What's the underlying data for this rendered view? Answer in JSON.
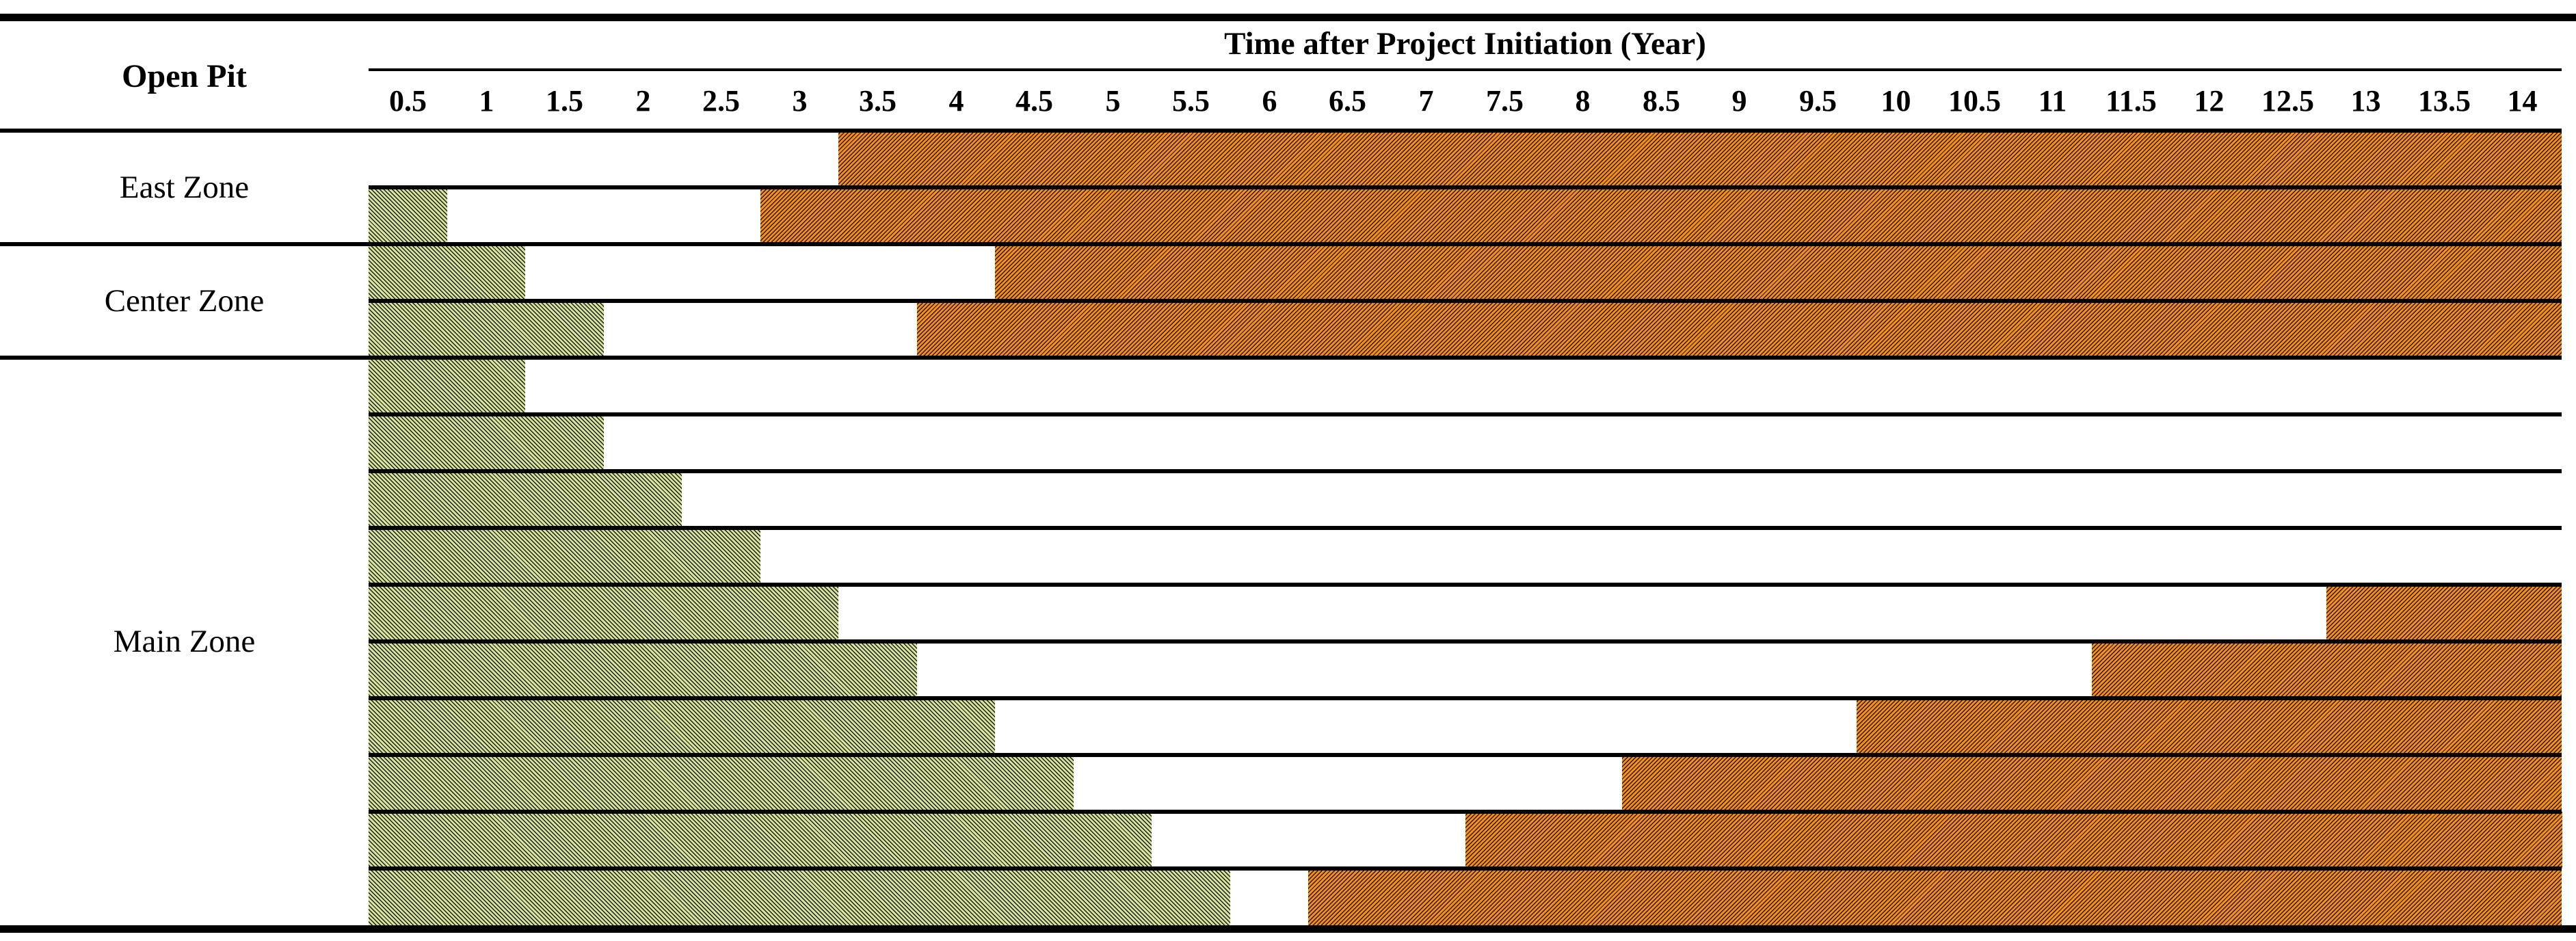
{
  "figure": {
    "type": "gantt-schedule-table",
    "corner_label": "Open Pit",
    "axis_title": "Time after Project Initiation (Year)",
    "tick_labels": [
      "0.5",
      "1",
      "1.5",
      "2",
      "2.5",
      "3",
      "3.5",
      "4",
      "4.5",
      "5",
      "5.5",
      "6",
      "6.5",
      "7",
      "7.5",
      "8",
      "8.5",
      "9",
      "9.5",
      "10",
      "10.5",
      "11",
      "11.5",
      "12",
      "12.5",
      "13",
      "13.5",
      "14"
    ]
  },
  "colors": {
    "green_bar_fill": "#d7e39c",
    "green_bar_hatch": "#1a1e0e",
    "orange_bar_fill": "#f78e15",
    "orange_bar_hatch": "#241509",
    "lines": "#000000",
    "background": "#ffffff"
  },
  "chart_data": {
    "type": "bar",
    "subtype": "gantt",
    "title": "",
    "xlabel": "Time after Project Initiation (Year)",
    "row_label_header": "Open Pit",
    "x_range_years": [
      0,
      14
    ],
    "x_tick_step_years": 0.5,
    "grid": "horizontal-row-lines-only",
    "legend": "none",
    "series_note": "each row has a green hatched phase bar starting at year 0 and/or an orange hatched phase bar ending at year 14; intervals in years",
    "groups": [
      {
        "label": "East Zone",
        "rows": [
          {
            "green": null,
            "orange": [
              3.0,
              14
            ]
          },
          {
            "green": [
              0,
              0.5
            ],
            "orange": [
              2.5,
              14
            ]
          }
        ]
      },
      {
        "label": "Center Zone",
        "rows": [
          {
            "green": [
              0,
              1.0
            ],
            "orange": [
              4.0,
              14
            ]
          },
          {
            "green": [
              0,
              1.5
            ],
            "orange": [
              3.5,
              14
            ]
          }
        ]
      },
      {
        "label": "Main Zone",
        "rows": [
          {
            "green": [
              0,
              1.0
            ],
            "orange": null
          },
          {
            "green": [
              0,
              1.5
            ],
            "orange": null
          },
          {
            "green": [
              0,
              2.0
            ],
            "orange": null
          },
          {
            "green": [
              0,
              2.5
            ],
            "orange": null
          },
          {
            "green": [
              0,
              3.0
            ],
            "orange": [
              12.5,
              14
            ]
          },
          {
            "green": [
              0,
              3.5
            ],
            "orange": [
              11.0,
              14
            ]
          },
          {
            "green": [
              0,
              4.0
            ],
            "orange": [
              9.5,
              14
            ]
          },
          {
            "green": [
              0,
              4.5
            ],
            "orange": [
              8.0,
              14
            ]
          },
          {
            "green": [
              0,
              5.0
            ],
            "orange": [
              7.0,
              14
            ]
          },
          {
            "green": [
              0,
              5.5
            ],
            "orange": [
              6.0,
              14
            ]
          }
        ]
      }
    ]
  }
}
